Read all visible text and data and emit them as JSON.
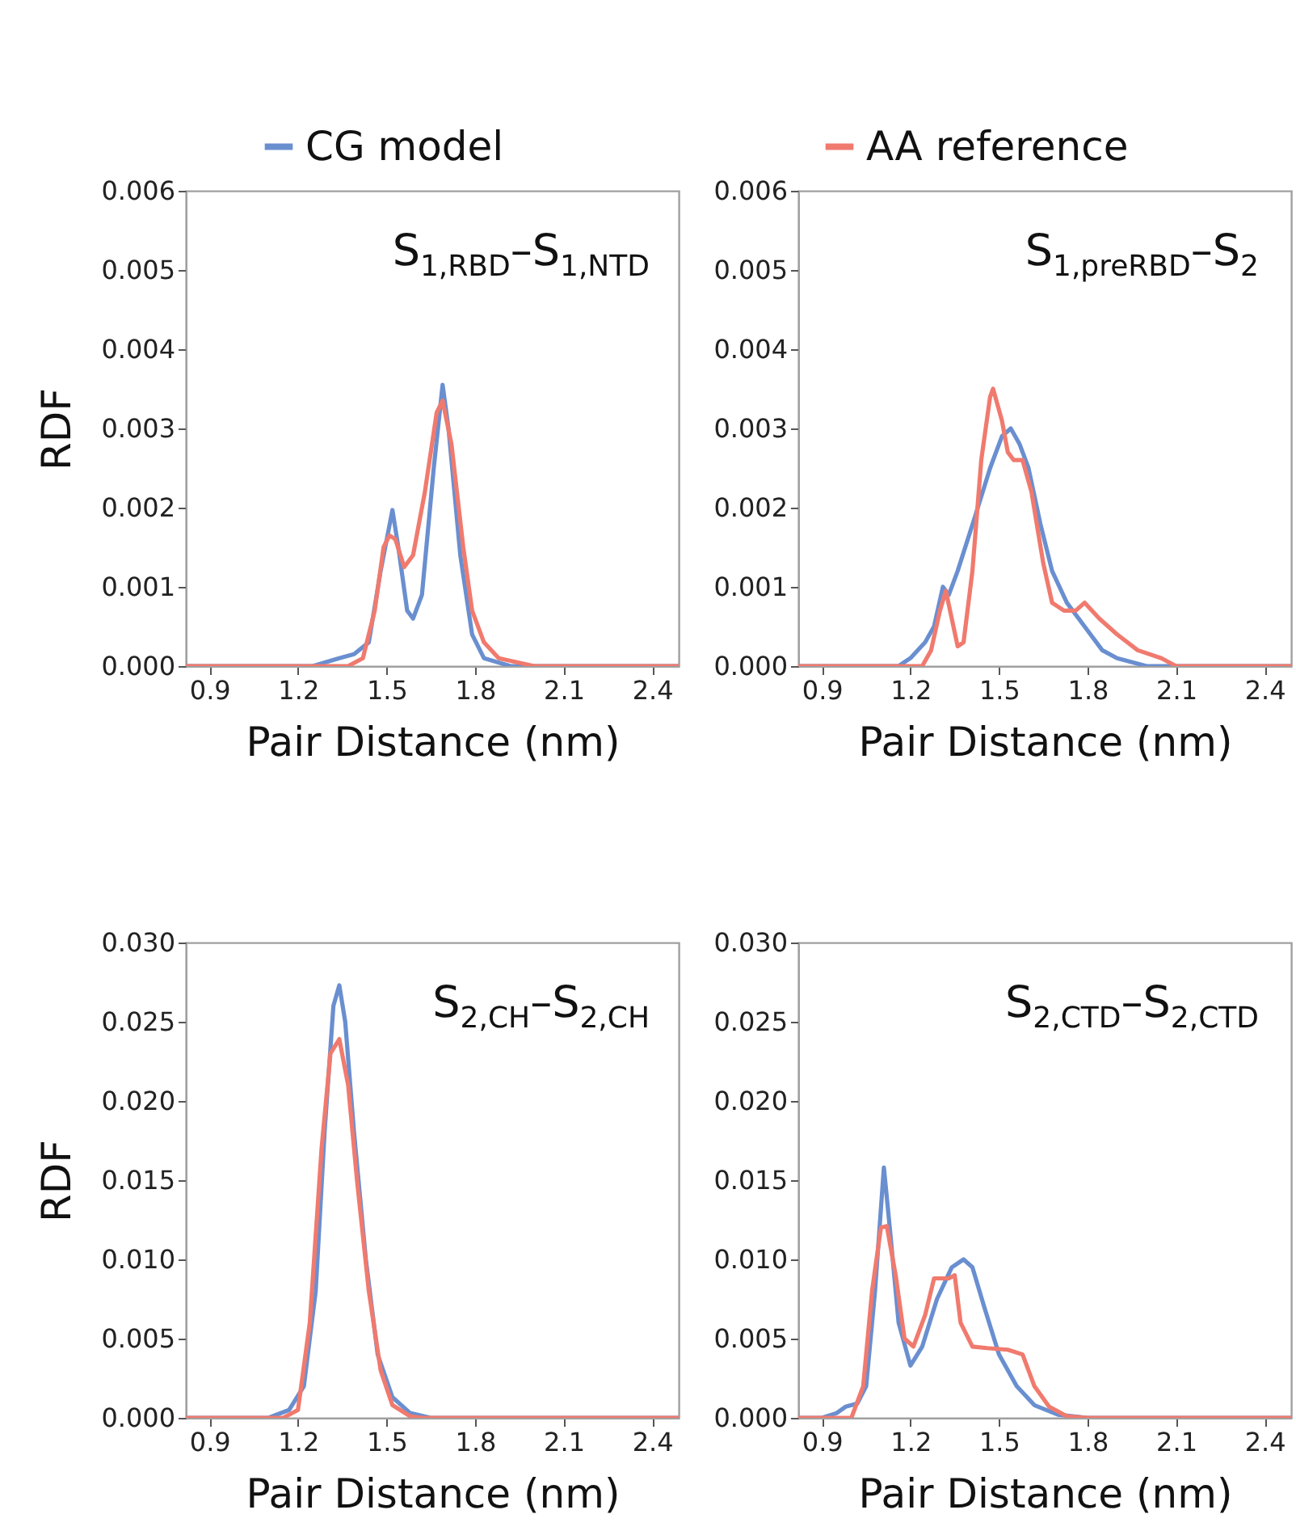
{
  "chart_data": [
    {
      "type": "line",
      "ylabel": "RDF",
      "xlabel": "Pair Distance (nm)",
      "annotations": [
        "S$_{1,RBD}$–S$_{1,NTD}$"
      ],
      "xlim": [
        0.82,
        2.49
      ],
      "xticks": [
        0.9,
        1.2,
        1.5,
        1.8,
        2.1,
        2.4
      ],
      "ylim": [
        0,
        0.006
      ],
      "yticks": [
        {
          "value": 0,
          "label": "0.000"
        },
        {
          "value": 0.001,
          "label": "0.001"
        },
        {
          "value": 0.002,
          "label": "0.002"
        },
        {
          "value": 0.003,
          "label": "0.003"
        },
        {
          "value": 0.004,
          "label": "0.004"
        },
        {
          "value": 0.005,
          "label": "0.005"
        },
        {
          "value": 0.006,
          "label": "0.006"
        }
      ],
      "grid": false,
      "legend": "top",
      "line_style": "solid",
      "series": [
        {
          "name": "CG model",
          "color": "#6a8fd0",
          "x": [
            0.82,
            1.25,
            1.34,
            1.39,
            1.44,
            1.48,
            1.52,
            1.54,
            1.57,
            1.59,
            1.62,
            1.66,
            1.69,
            1.71,
            1.75,
            1.79,
            1.83,
            1.92,
            2.07,
            2.49
          ],
          "values": [
            0,
            0,
            0.0001,
            0.00015,
            0.0003,
            0.0012,
            0.00197,
            0.0015,
            0.0007,
            0.0006,
            0.0009,
            0.0025,
            0.00355,
            0.003,
            0.0014,
            0.0004,
            0.0001,
            0,
            0,
            0
          ]
        },
        {
          "name": "AA reference",
          "color": "#f07a6e",
          "x": [
            0.82,
            1.37,
            1.42,
            1.46,
            1.49,
            1.51,
            1.53,
            1.56,
            1.59,
            1.63,
            1.67,
            1.69,
            1.72,
            1.76,
            1.79,
            1.83,
            1.88,
            2.0,
            2.4,
            2.49
          ],
          "values": [
            0,
            0,
            0.0001,
            0.0007,
            0.0015,
            0.00165,
            0.0016,
            0.00125,
            0.0014,
            0.0022,
            0.0032,
            0.00335,
            0.0028,
            0.0015,
            0.0007,
            0.0003,
            0.0001,
            0,
            0,
            0
          ]
        }
      ]
    },
    {
      "type": "line",
      "xlabel": "Pair Distance (nm)",
      "annotations": [
        "S$_{1,preRBD}$–S$_{2}$"
      ],
      "xlim": [
        0.82,
        2.49
      ],
      "xticks": [
        0.9,
        1.2,
        1.5,
        1.8,
        2.1,
        2.4
      ],
      "ylim": [
        0,
        0.006
      ],
      "yticks": [
        {
          "value": 0,
          "label": "0.000"
        },
        {
          "value": 0.001,
          "label": "0.001"
        },
        {
          "value": 0.002,
          "label": "0.002"
        },
        {
          "value": 0.003,
          "label": "0.003"
        },
        {
          "value": 0.004,
          "label": "0.004"
        },
        {
          "value": 0.005,
          "label": "0.005"
        },
        {
          "value": 0.006,
          "label": "0.006"
        }
      ],
      "grid": false,
      "line_style": "solid",
      "series": [
        {
          "color": "#6a8fd0",
          "x": [
            0.82,
            1.16,
            1.2,
            1.25,
            1.28,
            1.31,
            1.33,
            1.36,
            1.42,
            1.47,
            1.51,
            1.54,
            1.57,
            1.6,
            1.64,
            1.68,
            1.73,
            1.79,
            1.85,
            1.9,
            2.0,
            2.1,
            2.49
          ],
          "values": [
            0,
            0,
            0.0001,
            0.0003,
            0.0005,
            0.001,
            0.0009,
            0.0012,
            0.0019,
            0.0025,
            0.0029,
            0.003,
            0.0028,
            0.0025,
            0.0018,
            0.0012,
            0.0008,
            0.0005,
            0.0002,
            0.0001,
            0,
            0,
            0
          ]
        },
        {
          "color": "#f07a6e",
          "x": [
            0.82,
            1.24,
            1.27,
            1.3,
            1.32,
            1.34,
            1.36,
            1.38,
            1.41,
            1.44,
            1.47,
            1.48,
            1.51,
            1.53,
            1.55,
            1.58,
            1.61,
            1.65,
            1.68,
            1.72,
            1.76,
            1.79,
            1.84,
            1.9,
            1.97,
            2.05,
            2.1,
            2.49
          ],
          "values": [
            0,
            0,
            0.0002,
            0.0007,
            0.00095,
            0.0006,
            0.00025,
            0.0003,
            0.0012,
            0.0026,
            0.0034,
            0.0035,
            0.0031,
            0.0027,
            0.0026,
            0.0026,
            0.0022,
            0.0013,
            0.0008,
            0.0007,
            0.0007,
            0.0008,
            0.0006,
            0.0004,
            0.0002,
            0.0001,
            0,
            0
          ]
        }
      ]
    },
    {
      "type": "line",
      "ylabel": "RDF",
      "xlabel": "Pair Distance (nm)",
      "annotations": [
        "S$_{2,CH}$–S$_{2,CH}$"
      ],
      "xlim": [
        0.82,
        2.49
      ],
      "xticks": [
        0.9,
        1.2,
        1.5,
        1.8,
        2.1,
        2.4
      ],
      "ylim": [
        0,
        0.03
      ],
      "yticks": [
        {
          "value": 0,
          "label": "0.000"
        },
        {
          "value": 0.005,
          "label": "0.005"
        },
        {
          "value": 0.01,
          "label": "0.010"
        },
        {
          "value": 0.015,
          "label": "0.015"
        },
        {
          "value": 0.02,
          "label": "0.020"
        },
        {
          "value": 0.025,
          "label": "0.025"
        },
        {
          "value": 0.03,
          "label": "0.030"
        }
      ],
      "grid": false,
      "line_style": "solid",
      "series": [
        {
          "color": "#6a8fd0",
          "x": [
            0.82,
            1.1,
            1.17,
            1.22,
            1.26,
            1.29,
            1.32,
            1.34,
            1.36,
            1.39,
            1.43,
            1.47,
            1.52,
            1.58,
            1.65,
            1.75,
            2.49
          ],
          "values": [
            0,
            0,
            0.0005,
            0.002,
            0.008,
            0.018,
            0.026,
            0.0273,
            0.025,
            0.018,
            0.01,
            0.004,
            0.0013,
            0.0003,
            0,
            0,
            0
          ]
        },
        {
          "color": "#f07a6e",
          "x": [
            0.82,
            1.15,
            1.2,
            1.24,
            1.28,
            1.31,
            1.34,
            1.37,
            1.4,
            1.44,
            1.48,
            1.52,
            1.58,
            1.62,
            2.49
          ],
          "values": [
            0,
            0,
            0.0005,
            0.006,
            0.017,
            0.023,
            0.0239,
            0.021,
            0.015,
            0.008,
            0.003,
            0.0008,
            0.0001,
            0,
            0
          ]
        }
      ]
    },
    {
      "type": "line",
      "xlabel": "Pair Distance (nm)",
      "annotations": [
        "S$_{2,CTD}$–S$_{2,CTD}$"
      ],
      "xlim": [
        0.82,
        2.49
      ],
      "xticks": [
        0.9,
        1.2,
        1.5,
        1.8,
        2.1,
        2.4
      ],
      "ylim": [
        0,
        0.03
      ],
      "yticks": [
        {
          "value": 0,
          "label": "0.000"
        },
        {
          "value": 0.005,
          "label": "0.005"
        },
        {
          "value": 0.01,
          "label": "0.010"
        },
        {
          "value": 0.015,
          "label": "0.015"
        },
        {
          "value": 0.02,
          "label": "0.020"
        },
        {
          "value": 0.025,
          "label": "0.025"
        },
        {
          "value": 0.03,
          "label": "0.030"
        }
      ],
      "grid": false,
      "line_style": "solid",
      "series": [
        {
          "color": "#6a8fd0",
          "x": [
            0.82,
            0.9,
            0.95,
            0.98,
            1.02,
            1.05,
            1.08,
            1.11,
            1.13,
            1.16,
            1.2,
            1.24,
            1.29,
            1.34,
            1.38,
            1.41,
            1.45,
            1.5,
            1.56,
            1.62,
            1.7,
            1.8,
            2.49
          ],
          "values": [
            0,
            0,
            0.0003,
            0.0007,
            0.0009,
            0.002,
            0.008,
            0.0158,
            0.012,
            0.006,
            0.0033,
            0.0045,
            0.0075,
            0.0095,
            0.01,
            0.0095,
            0.007,
            0.004,
            0.002,
            0.0008,
            0.0002,
            0,
            0
          ]
        },
        {
          "color": "#f07a6e",
          "x": [
            0.82,
            1.0,
            1.04,
            1.07,
            1.1,
            1.12,
            1.15,
            1.18,
            1.21,
            1.25,
            1.28,
            1.33,
            1.35,
            1.37,
            1.41,
            1.46,
            1.53,
            1.58,
            1.62,
            1.67,
            1.73,
            1.8,
            2.49
          ],
          "values": [
            0,
            0,
            0.002,
            0.008,
            0.012,
            0.0121,
            0.009,
            0.005,
            0.0045,
            0.0065,
            0.0088,
            0.0088,
            0.009,
            0.006,
            0.0045,
            0.0044,
            0.0043,
            0.004,
            0.002,
            0.0007,
            0.0001,
            0,
            0
          ]
        }
      ]
    }
  ]
}
